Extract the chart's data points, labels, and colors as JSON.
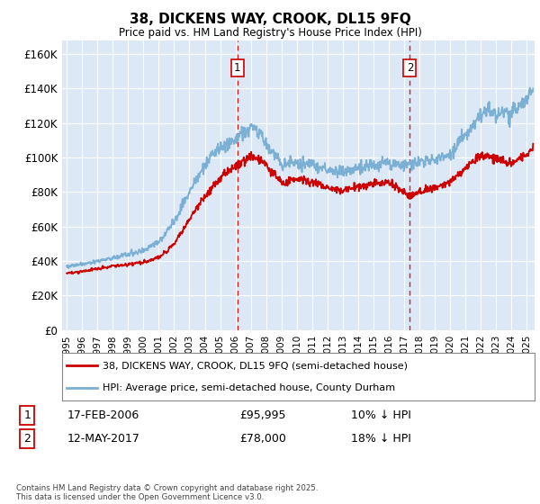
{
  "title": "38, DICKENS WAY, CROOK, DL15 9FQ",
  "subtitle": "Price paid vs. HM Land Registry's House Price Index (HPI)",
  "ylabel_ticks": [
    "£0",
    "£20K",
    "£40K",
    "£60K",
    "£80K",
    "£100K",
    "£120K",
    "£140K",
    "£160K"
  ],
  "ytick_vals": [
    0,
    20000,
    40000,
    60000,
    80000,
    100000,
    120000,
    140000,
    160000
  ],
  "ylim": [
    0,
    168000
  ],
  "xlim_start": 1994.7,
  "xlim_end": 2025.5,
  "vline1_x": 2006.12,
  "vline2_x": 2017.37,
  "marker1_x": 2006.12,
  "marker1_y": 95995,
  "marker2_x": 2017.37,
  "marker2_y": 78000,
  "annotation1_label": "1",
  "annotation2_label": "2",
  "legend_line1": "38, DICKENS WAY, CROOK, DL15 9FQ (semi-detached house)",
  "legend_line2": "HPI: Average price, semi-detached house, County Durham",
  "table_row1": [
    "1",
    "17-FEB-2006",
    "£95,995",
    "10% ↓ HPI"
  ],
  "table_row2": [
    "2",
    "12-MAY-2017",
    "£78,000",
    "18% ↓ HPI"
  ],
  "footer": "Contains HM Land Registry data © Crown copyright and database right 2025.\nThis data is licensed under the Open Government Licence v3.0.",
  "red_color": "#cc0000",
  "blue_color": "#7bafd4",
  "bg_color": "#dce8f5",
  "grid_color": "#ffffff",
  "vline_color": "#cc0000",
  "xtick_years": [
    1995,
    1996,
    1997,
    1998,
    1999,
    2000,
    2001,
    2002,
    2003,
    2004,
    2005,
    2006,
    2007,
    2008,
    2009,
    2010,
    2011,
    2012,
    2013,
    2014,
    2015,
    2016,
    2017,
    2018,
    2019,
    2020,
    2021,
    2022,
    2023,
    2024,
    2025
  ],
  "hpi_knots": {
    "x": [
      1995.0,
      1996.0,
      1997.0,
      1998.0,
      1999.0,
      2000.0,
      2001.0,
      2002.0,
      2003.0,
      2004.0,
      2005.0,
      2006.0,
      2007.0,
      2007.5,
      2008.0,
      2009.0,
      2010.0,
      2011.0,
      2012.0,
      2013.0,
      2014.0,
      2015.0,
      2016.0,
      2017.0,
      2018.0,
      2019.0,
      2020.0,
      2021.0,
      2022.0,
      2022.5,
      2023.0,
      2023.5,
      2024.0,
      2024.5,
      2025.4
    ],
    "y": [
      37000,
      38000,
      40000,
      42000,
      44000,
      46000,
      51000,
      63000,
      80000,
      96000,
      106000,
      110000,
      118000,
      116000,
      108000,
      96000,
      97000,
      96000,
      93000,
      92000,
      94000,
      96000,
      97000,
      96000,
      97000,
      99000,
      102000,
      113000,
      126000,
      128000,
      124000,
      126000,
      126000,
      130000,
      138000
    ]
  },
  "red_knots": {
    "x": [
      1995.0,
      1996.0,
      1997.0,
      1998.0,
      1999.0,
      2000.0,
      2001.0,
      2002.0,
      2003.0,
      2004.0,
      2005.0,
      2006.0,
      2006.12,
      2007.0,
      2008.0,
      2009.0,
      2010.0,
      2011.0,
      2012.0,
      2013.0,
      2014.0,
      2015.0,
      2016.0,
      2017.0,
      2017.37,
      2018.0,
      2019.0,
      2020.0,
      2021.0,
      2022.0,
      2023.0,
      2024.0,
      2025.0,
      2025.4
    ],
    "y": [
      33000,
      34000,
      35500,
      37000,
      38000,
      39500,
      42000,
      50000,
      64000,
      78000,
      88000,
      95000,
      95995,
      101000,
      96000,
      85000,
      88000,
      86000,
      83000,
      81000,
      83000,
      85000,
      86000,
      80000,
      78000,
      80000,
      83000,
      86000,
      94000,
      102000,
      100000,
      97000,
      102000,
      105000
    ]
  }
}
